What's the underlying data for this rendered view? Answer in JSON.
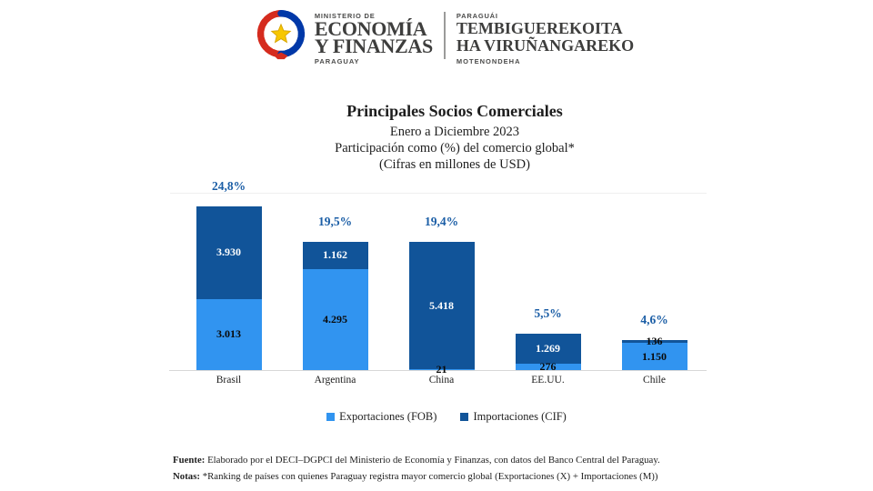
{
  "header": {
    "ministry": {
      "kicker": "MINISTERIO DE",
      "line1": "ECONOMÍA",
      "line2": "Y FINANZAS",
      "footer": "PARAGUAY"
    },
    "guarani": {
      "kicker": "PARAGUÁI",
      "line1": "TEMBIGUEREKOITA",
      "line2": "HA VIRUÑANGAREKO",
      "footer": "MOTENONDEHA"
    },
    "seal_colors": {
      "red": "#d52b1e",
      "blue": "#0038a8",
      "star": "#f7c700"
    }
  },
  "chart_data": {
    "type": "bar",
    "variant": "stacked-vertical",
    "title": "Principales Socios Comerciales",
    "subtitle_lines": [
      "Enero a Diciembre 2023",
      "Participación como (%) del comercio global*",
      "(Cifras en millones de USD)"
    ],
    "categories": [
      "Brasil",
      "Argentina",
      "China",
      "EE.UU.",
      "Chile"
    ],
    "share_of_global_trade": [
      "24,8%",
      "19,5%",
      "19,4%",
      "5,5%",
      "4,6%"
    ],
    "series": [
      {
        "name": "Exportaciones (FOB)",
        "color": "#3194f0",
        "values": [
          3013,
          4295,
          21,
          276,
          1150
        ],
        "value_labels": [
          "3.013",
          "4.295",
          "21",
          "276",
          "1.150"
        ]
      },
      {
        "name": "Importaciones (CIF)",
        "color": "#115499",
        "values": [
          3930,
          1162,
          5418,
          1269,
          136
        ],
        "value_labels": [
          "3.930",
          "1.162",
          "5.418",
          "1.269",
          "136"
        ]
      }
    ],
    "share_label_color": "#1b5ea6",
    "value_label_color_on_dark": "#ffffff",
    "value_label_color_on_light": "#0a0a0a",
    "legend_position": "bottom",
    "ylim": [
      0,
      7000
    ],
    "gridlines": false
  },
  "footer": {
    "fuente_label": "Fuente:",
    "fuente_text": " Elaborado por el DECI–DGPCI del Ministerio de Economía y Finanzas, con datos del Banco Central del Paraguay.",
    "notas_label": "Notas:",
    "notas_text": " *Ranking de países con quienes Paraguay registra mayor comercio global (Exportaciones (X) + Importaciones (M))"
  }
}
